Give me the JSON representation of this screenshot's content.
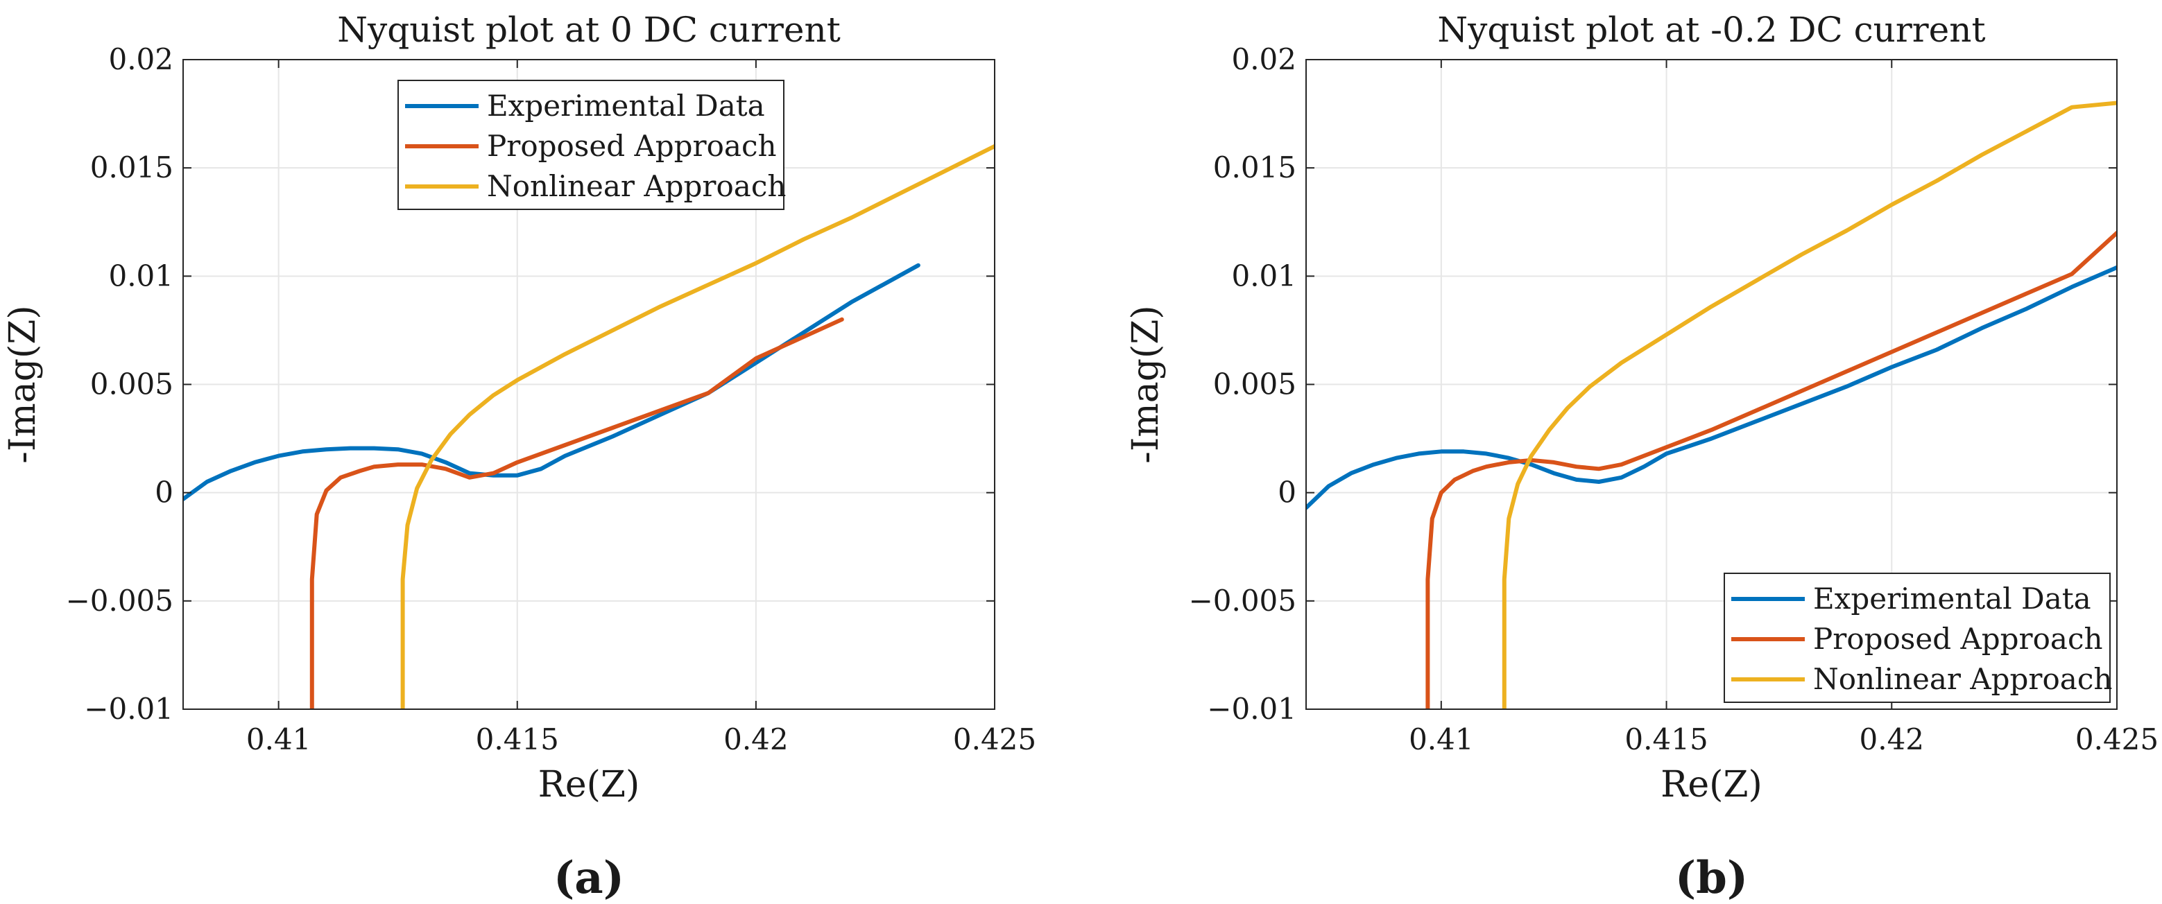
{
  "chart_data": [
    {
      "type": "line",
      "title": "Nyquist plot at 0 DC current",
      "xlabel": "Re(Z)",
      "ylabel": "-Imag(Z)",
      "xlim": [
        0.408,
        0.425
      ],
      "ylim": [
        -0.01,
        0.02
      ],
      "xticks": [
        0.41,
        0.415,
        0.42,
        0.425
      ],
      "xtick_labels": [
        "0.41",
        "0.415",
        "0.42",
        "0.425"
      ],
      "yticks": [
        -0.01,
        -0.005,
        0,
        0.005,
        0.01,
        0.015,
        0.02
      ],
      "ytick_labels": [
        "−0.01",
        "−0.005",
        "0",
        "0.005",
        "0.01",
        "0.015",
        "0.02"
      ],
      "grid": true,
      "legend_position": "top-center",
      "caption": "(a)",
      "series": [
        {
          "name": "Experimental Data",
          "color": "#0072BD",
          "x": [
            0.408,
            0.4085,
            0.409,
            0.4095,
            0.41,
            0.4105,
            0.411,
            0.4115,
            0.412,
            0.4125,
            0.413,
            0.4135,
            0.414,
            0.4145,
            0.415,
            0.4155,
            0.416,
            0.417,
            0.418,
            0.419,
            0.42,
            0.421,
            0.422,
            0.4234
          ],
          "y": [
            -0.0003,
            0.0005,
            0.001,
            0.0014,
            0.0017,
            0.0019,
            0.002,
            0.00205,
            0.00205,
            0.002,
            0.0018,
            0.0014,
            0.0009,
            0.0008,
            0.0008,
            0.0011,
            0.0017,
            0.0026,
            0.0036,
            0.0046,
            0.006,
            0.0074,
            0.0088,
            0.0105
          ]
        },
        {
          "name": "Proposed Approach",
          "color": "#D95319",
          "x": [
            0.4107,
            0.4107,
            0.4108,
            0.411,
            0.4113,
            0.4117,
            0.412,
            0.4125,
            0.413,
            0.4135,
            0.414,
            0.4145,
            0.415,
            0.416,
            0.417,
            0.418,
            0.419,
            0.42,
            0.421,
            0.4218
          ],
          "y": [
            -0.01,
            -0.004,
            -0.001,
            0.0001,
            0.0007,
            0.001,
            0.0012,
            0.0013,
            0.0013,
            0.0011,
            0.0007,
            0.0009,
            0.0014,
            0.0022,
            0.003,
            0.0038,
            0.0046,
            0.0062,
            0.0072,
            0.008
          ]
        },
        {
          "name": "Nonlinear Approach",
          "color": "#EDB120",
          "x": [
            0.4126,
            0.4126,
            0.4127,
            0.4129,
            0.4132,
            0.4136,
            0.414,
            0.4145,
            0.415,
            0.416,
            0.417,
            0.418,
            0.419,
            0.42,
            0.421,
            0.422,
            0.423,
            0.424,
            0.425
          ],
          "y": [
            -0.01,
            -0.004,
            -0.0015,
            0.0002,
            0.0015,
            0.0027,
            0.0036,
            0.0045,
            0.0052,
            0.0064,
            0.0075,
            0.0086,
            0.0096,
            0.0106,
            0.0117,
            0.0127,
            0.0138,
            0.0149,
            0.016
          ]
        }
      ]
    },
    {
      "type": "line",
      "title": "Nyquist plot at -0.2 DC current",
      "xlabel": "Re(Z)",
      "ylabel": "-Imag(Z)",
      "xlim": [
        0.407,
        0.425
      ],
      "ylim": [
        -0.01,
        0.02
      ],
      "xticks": [
        0.41,
        0.415,
        0.42,
        0.425
      ],
      "xtick_labels": [
        "0.41",
        "0.415",
        "0.42",
        "0.425"
      ],
      "yticks": [
        -0.01,
        -0.005,
        0,
        0.005,
        0.01,
        0.015,
        0.02
      ],
      "ytick_labels": [
        "−0.01",
        "−0.005",
        "0",
        "0.005",
        "0.01",
        "0.015",
        "0.02"
      ],
      "grid": true,
      "legend_position": "bottom-right",
      "caption": "(b)",
      "series": [
        {
          "name": "Experimental Data",
          "color": "#0072BD",
          "x": [
            0.407,
            0.4075,
            0.408,
            0.4085,
            0.409,
            0.4095,
            0.41,
            0.4105,
            0.411,
            0.4115,
            0.412,
            0.4125,
            0.413,
            0.4135,
            0.414,
            0.4145,
            0.415,
            0.416,
            0.417,
            0.418,
            0.419,
            0.42,
            0.421,
            0.422,
            0.423,
            0.424,
            0.425
          ],
          "y": [
            -0.0007,
            0.0003,
            0.0009,
            0.0013,
            0.0016,
            0.0018,
            0.0019,
            0.0019,
            0.0018,
            0.0016,
            0.0013,
            0.0009,
            0.0006,
            0.0005,
            0.0007,
            0.0012,
            0.0018,
            0.0025,
            0.0033,
            0.0041,
            0.0049,
            0.0058,
            0.0066,
            0.0076,
            0.0085,
            0.0095,
            0.0104
          ]
        },
        {
          "name": "Proposed Approach",
          "color": "#D95319",
          "x": [
            0.4097,
            0.4097,
            0.4098,
            0.41,
            0.4103,
            0.4107,
            0.411,
            0.4115,
            0.412,
            0.4125,
            0.413,
            0.4135,
            0.414,
            0.415,
            0.416,
            0.417,
            0.418,
            0.419,
            0.42,
            0.421,
            0.422,
            0.423,
            0.424,
            0.425
          ],
          "y": [
            -0.01,
            -0.004,
            -0.0012,
            0,
            0.0006,
            0.001,
            0.0012,
            0.0014,
            0.0015,
            0.0014,
            0.0012,
            0.0011,
            0.0013,
            0.0021,
            0.0029,
            0.0038,
            0.0047,
            0.0056,
            0.0065,
            0.0074,
            0.0083,
            0.0092,
            0.0101,
            0.012
          ]
        },
        {
          "name": "Nonlinear Approach",
          "color": "#EDB120",
          "x": [
            0.4114,
            0.4114,
            0.4115,
            0.4117,
            0.412,
            0.4124,
            0.4128,
            0.4133,
            0.414,
            0.415,
            0.416,
            0.417,
            0.418,
            0.419,
            0.42,
            0.421,
            0.422,
            0.423,
            0.424,
            0.425
          ],
          "y": [
            -0.01,
            -0.004,
            -0.0012,
            0.0004,
            0.0017,
            0.0029,
            0.0039,
            0.0049,
            0.006,
            0.0073,
            0.0086,
            0.0098,
            0.011,
            0.0121,
            0.0133,
            0.0144,
            0.0156,
            0.0167,
            0.0178,
            0.018
          ]
        }
      ]
    }
  ]
}
